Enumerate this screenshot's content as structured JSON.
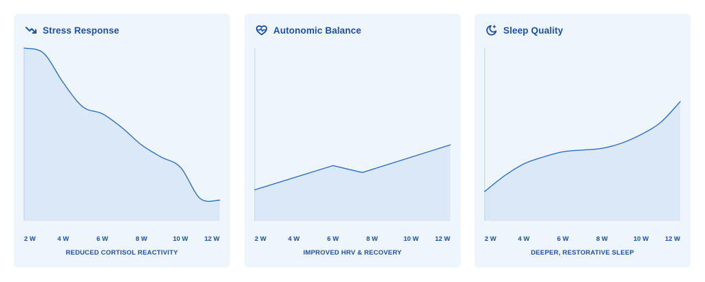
{
  "colors": {
    "card_bg": "#eef6fc",
    "accent": "#1f4fa3",
    "line": "#2f6fbf",
    "area": "#dbe8f7",
    "axis": "#b9d1ea"
  },
  "cards": [
    {
      "title": "Stress Response",
      "icon": "trending-down-icon",
      "caption": "REDUCED CORTISOL REACTIVITY"
    },
    {
      "title": "Autonomic Balance",
      "icon": "heart-pulse-icon",
      "caption": "IMPROVED HRV & RECOVERY"
    },
    {
      "title": "Sleep Quality",
      "icon": "moon-stars-icon",
      "caption": "DEEPER, RESTORATIVE SLEEP"
    }
  ],
  "chart_data": [
    {
      "type": "area",
      "title": "Stress Response",
      "categories": [
        "2 W",
        "4 W",
        "6 W",
        "8 W",
        "10 W",
        "12 W"
      ],
      "curve": "smooth",
      "x": [
        2,
        3,
        4,
        5,
        6,
        7,
        8,
        9,
        10,
        11,
        12
      ],
      "values": [
        100,
        97,
        80,
        66,
        62,
        54,
        44,
        37,
        31,
        13,
        12
      ],
      "xlim": [
        2,
        12
      ],
      "ylim": [
        0,
        100
      ],
      "grid": false
    },
    {
      "type": "area",
      "title": "Autonomic Balance",
      "categories": [
        "2 W",
        "4 W",
        "6 W",
        "8 W",
        "10 W",
        "12 W"
      ],
      "curve": "linear",
      "x": [
        2,
        6,
        7.5,
        12
      ],
      "values": [
        18,
        32,
        28,
        44
      ],
      "xlim": [
        2,
        12
      ],
      "ylim": [
        0,
        100
      ],
      "grid": false
    },
    {
      "type": "area",
      "title": "Sleep Quality",
      "categories": [
        "2 W",
        "4 W",
        "6 W",
        "8 W",
        "10 W",
        "12 W"
      ],
      "curve": "smooth",
      "x": [
        2,
        3,
        4,
        5,
        6,
        7,
        8,
        9,
        10,
        11,
        12
      ],
      "values": [
        17,
        26,
        33,
        37,
        40,
        41,
        42,
        45,
        50,
        57,
        69
      ],
      "xlim": [
        2,
        12
      ],
      "ylim": [
        0,
        100
      ],
      "grid": false
    }
  ]
}
